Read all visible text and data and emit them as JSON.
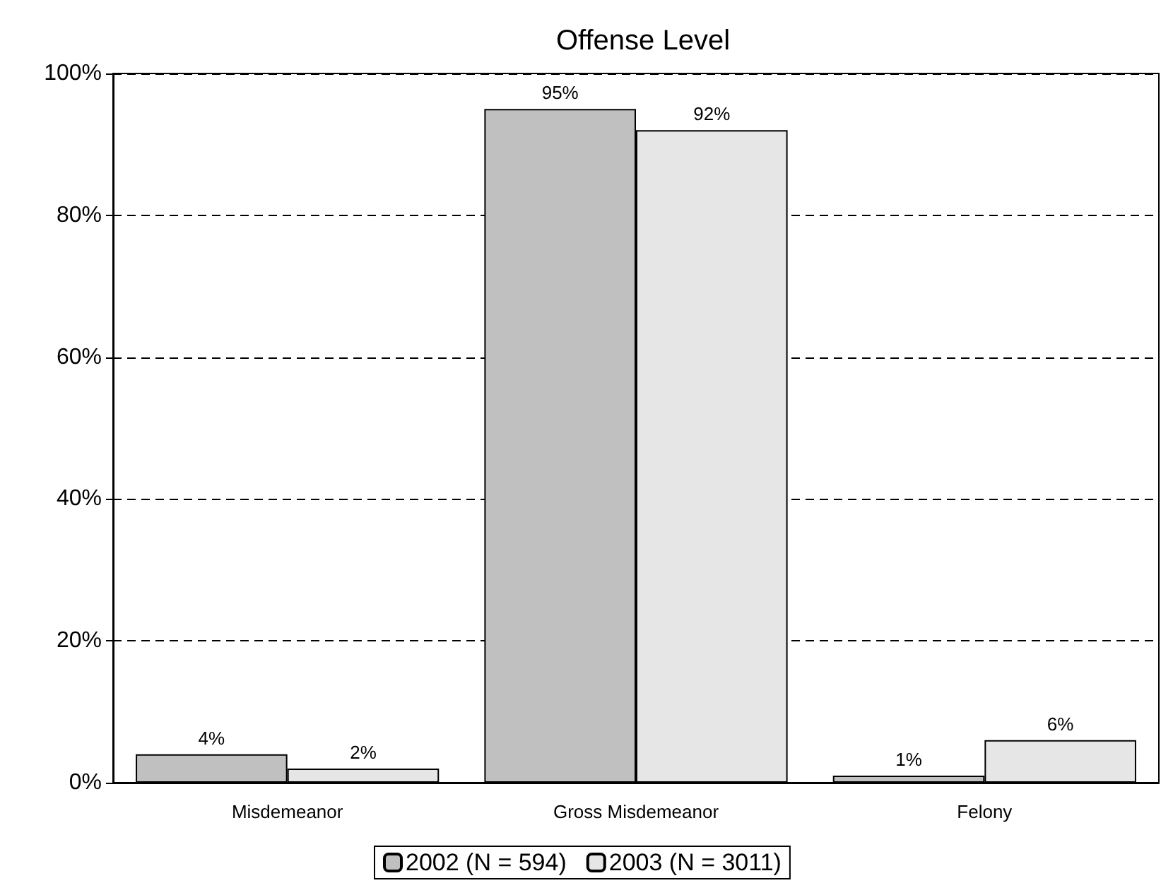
{
  "chart_data": {
    "type": "bar",
    "title": "Offense Level",
    "categories": [
      "Misdemeanor",
      "Gross Misdemeanor",
      "Felony"
    ],
    "series": [
      {
        "name": "2002 (N = 594)",
        "color": "#c0c0c0",
        "values": [
          4,
          95,
          1
        ],
        "value_labels": [
          "4%",
          "95%",
          "1%"
        ]
      },
      {
        "name": "2003 (N = 3011)",
        "color": "#e6e6e6",
        "values": [
          2,
          92,
          6
        ],
        "value_labels": [
          "2%",
          "92%",
          "6%"
        ]
      }
    ],
    "ylim": [
      0,
      100
    ],
    "yticks": [
      {
        "value": 0,
        "label": "0%"
      },
      {
        "value": 20,
        "label": "20%"
      },
      {
        "value": 40,
        "label": "40%"
      },
      {
        "value": 60,
        "label": "60%"
      },
      {
        "value": 80,
        "label": "80%"
      },
      {
        "value": 100,
        "label": "100%"
      }
    ],
    "grid": "y",
    "legend": "bottom"
  }
}
